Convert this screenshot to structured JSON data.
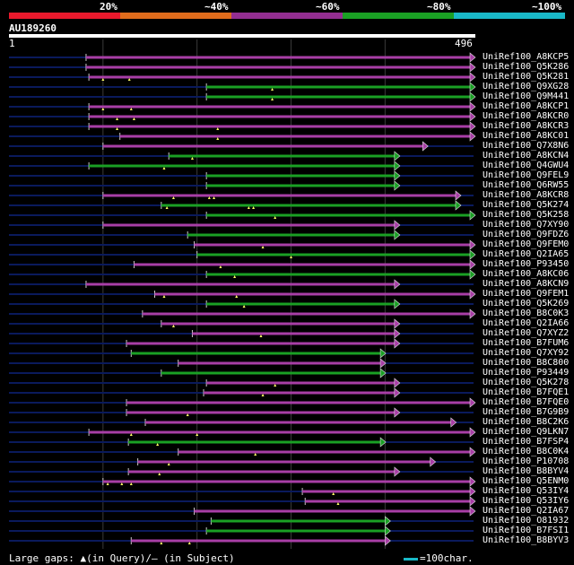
{
  "legend": {
    "segments": [
      {
        "label": "20%",
        "color": "#e8192c"
      },
      {
        "label": "~40%",
        "color": "#e06c1c"
      },
      {
        "label": "~60%",
        "color": "#932e91"
      },
      {
        "label": "~80%",
        "color": "#1aa024"
      },
      {
        "label": "~100%",
        "color": "#19b8c7"
      }
    ]
  },
  "query": {
    "name": "AU189260",
    "start": "1",
    "end": "496",
    "length": 496
  },
  "colors": {
    "purple": "#a83ea6",
    "green": "#1aa024",
    "backbone": "#0a1a5c",
    "grid": "#3a3a3a",
    "marker": "#ffff66"
  },
  "hits": [
    {
      "name": "UniRef100_A8KCP5",
      "start": 82,
      "end": 496,
      "color": "purple",
      "markers": []
    },
    {
      "name": "UniRef100_Q5K286",
      "start": 82,
      "end": 496,
      "color": "purple",
      "markers": []
    },
    {
      "name": "UniRef100_Q5K281",
      "start": 85,
      "end": 500,
      "color": "purple",
      "markers": [
        100,
        128
      ]
    },
    {
      "name": "UniRef100_Q9XG28",
      "start": 210,
      "end": 500,
      "color": "green",
      "markers": [
        280
      ]
    },
    {
      "name": "UniRef100_Q9M441",
      "start": 210,
      "end": 500,
      "color": "green",
      "markers": [
        280
      ]
    },
    {
      "name": "UniRef100_A8KCP1",
      "start": 85,
      "end": 500,
      "color": "purple",
      "markers": [
        100,
        130
      ]
    },
    {
      "name": "UniRef100_A8KCR0",
      "start": 85,
      "end": 500,
      "color": "purple",
      "markers": [
        115,
        133
      ]
    },
    {
      "name": "UniRef100_A8KCR3",
      "start": 85,
      "end": 500,
      "color": "purple",
      "markers": [
        115,
        222
      ]
    },
    {
      "name": "UniRef100_A8KC01",
      "start": 118,
      "end": 500,
      "color": "purple",
      "markers": [
        222
      ]
    },
    {
      "name": "UniRef100_Q7X8N6",
      "start": 100,
      "end": 440,
      "color": "purple",
      "markers": []
    },
    {
      "name": "UniRef100_A8KCN4",
      "start": 170,
      "end": 410,
      "color": "green",
      "markers": [
        195
      ]
    },
    {
      "name": "UniRef100_Q4GWU4",
      "start": 85,
      "end": 410,
      "color": "green",
      "markers": [
        165
      ]
    },
    {
      "name": "UniRef100_Q9FEL9",
      "start": 210,
      "end": 410,
      "color": "green",
      "markers": []
    },
    {
      "name": "UniRef100_Q6RW55",
      "start": 210,
      "end": 410,
      "color": "green",
      "markers": []
    },
    {
      "name": "UniRef100_A8KCR8",
      "start": 100,
      "end": 475,
      "color": "purple",
      "markers": [
        175,
        213,
        218
      ]
    },
    {
      "name": "UniRef100_Q5K274",
      "start": 162,
      "end": 475,
      "color": "green",
      "markers": [
        168,
        255,
        260
      ]
    },
    {
      "name": "UniRef100_Q5K258",
      "start": 210,
      "end": 500,
      "color": "green",
      "markers": [
        283
      ]
    },
    {
      "name": "UniRef100_Q7XY90",
      "start": 100,
      "end": 410,
      "color": "purple",
      "markers": []
    },
    {
      "name": "UniRef100_Q9FDZ6",
      "start": 190,
      "end": 410,
      "color": "green",
      "markers": []
    },
    {
      "name": "UniRef100_Q9FEM0",
      "start": 197,
      "end": 500,
      "color": "purple",
      "markers": [
        270
      ]
    },
    {
      "name": "UniRef100_Q2IA65",
      "start": 200,
      "end": 500,
      "color": "green",
      "markers": [
        300
      ]
    },
    {
      "name": "UniRef100_P93450",
      "start": 133,
      "end": 500,
      "color": "purple",
      "markers": [
        225
      ]
    },
    {
      "name": "UniRef100_A8KC06",
      "start": 210,
      "end": 500,
      "color": "green",
      "markers": [
        240
      ]
    },
    {
      "name": "UniRef100_A8KCN9",
      "start": 82,
      "end": 410,
      "color": "purple",
      "markers": []
    },
    {
      "name": "UniRef100_Q9FEM1",
      "start": 155,
      "end": 495,
      "color": "purple",
      "markers": [
        165,
        242
      ]
    },
    {
      "name": "UniRef100_Q5K269",
      "start": 210,
      "end": 410,
      "color": "green",
      "markers": [
        250
      ]
    },
    {
      "name": "UniRef100_B8C0K3",
      "start": 142,
      "end": 500,
      "color": "purple",
      "markers": []
    },
    {
      "name": "UniRef100_Q2IA66",
      "start": 162,
      "end": 410,
      "color": "purple",
      "markers": [
        175
      ]
    },
    {
      "name": "UniRef100_Q7XYZ2",
      "start": 195,
      "end": 410,
      "color": "purple",
      "markers": [
        268
      ]
    },
    {
      "name": "UniRef100_B7FUM6",
      "start": 125,
      "end": 410,
      "color": "purple",
      "markers": []
    },
    {
      "name": "UniRef100_Q7XY92",
      "start": 130,
      "end": 395,
      "color": "green",
      "markers": []
    },
    {
      "name": "UniRef100_B8C800",
      "start": 180,
      "end": 395,
      "color": "purple",
      "markers": []
    },
    {
      "name": "UniRef100_P93449",
      "start": 162,
      "end": 395,
      "color": "green",
      "markers": []
    },
    {
      "name": "UniRef100_Q5K278",
      "start": 210,
      "end": 410,
      "color": "purple",
      "markers": [
        283
      ]
    },
    {
      "name": "UniRef100_B7FQE1",
      "start": 207,
      "end": 410,
      "color": "purple",
      "markers": [
        270
      ]
    },
    {
      "name": "UniRef100_B7FQE0",
      "start": 125,
      "end": 500,
      "color": "purple",
      "markers": []
    },
    {
      "name": "UniRef100_B7G9B9",
      "start": 125,
      "end": 410,
      "color": "purple",
      "markers": [
        190
      ]
    },
    {
      "name": "UniRef100_B8C2K6",
      "start": 145,
      "end": 470,
      "color": "purple",
      "markers": []
    },
    {
      "name": "UniRef100_Q9LKN7",
      "start": 85,
      "end": 500,
      "color": "purple",
      "markers": [
        200,
        130
      ]
    },
    {
      "name": "UniRef100_B7FSP4",
      "start": 127,
      "end": 395,
      "color": "green",
      "markers": [
        158
      ]
    },
    {
      "name": "UniRef100_B8C0K4",
      "start": 180,
      "end": 500,
      "color": "purple",
      "markers": [
        262
      ]
    },
    {
      "name": "UniRef100_P10708",
      "start": 137,
      "end": 448,
      "color": "purple",
      "markers": [
        170
      ]
    },
    {
      "name": "UniRef100_B8BYV4",
      "start": 127,
      "end": 410,
      "color": "purple",
      "markers": [
        160
      ]
    },
    {
      "name": "UniRef100_Q5ENM0",
      "start": 100,
      "end": 500,
      "color": "purple",
      "markers": [
        105,
        120,
        130
      ]
    },
    {
      "name": "UniRef100_Q53IY4",
      "start": 312,
      "end": 500,
      "color": "purple",
      "markers": [
        345
      ]
    },
    {
      "name": "UniRef100_Q53IY6",
      "start": 315,
      "end": 500,
      "color": "purple",
      "markers": [
        350
      ]
    },
    {
      "name": "UniRef100_Q2IA67",
      "start": 197,
      "end": 500,
      "color": "purple",
      "markers": []
    },
    {
      "name": "UniRef100_O81932",
      "start": 215,
      "end": 400,
      "color": "green",
      "markers": []
    },
    {
      "name": "UniRef100_B7FSI1",
      "start": 210,
      "end": 400,
      "color": "green",
      "markers": []
    },
    {
      "name": "UniRef100_B8BYV3",
      "start": 130,
      "end": 400,
      "color": "purple",
      "markers": [
        162,
        192
      ]
    }
  ],
  "footer": {
    "legend": "Large gaps: ▲(in Query)/— (in Subject)",
    "scale": "=100char."
  }
}
